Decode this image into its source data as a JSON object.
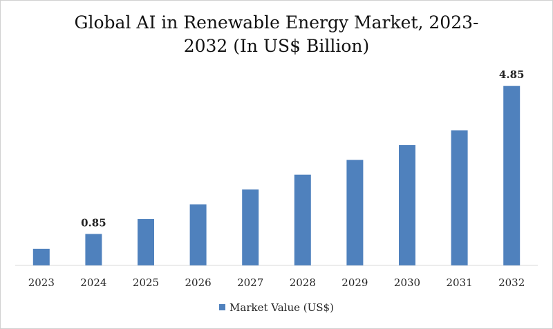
{
  "chart_data": {
    "type": "bar",
    "title_lines": [
      "Global AI in Renewable Energy Market, 2023-",
      "2032 (In US$ Billion)"
    ],
    "categories": [
      "2023",
      "2024",
      "2025",
      "2026",
      "2027",
      "2028",
      "2029",
      "2030",
      "2031",
      "2032"
    ],
    "series": [
      {
        "name": "Market Value (US$)",
        "values": [
          0.45,
          0.85,
          1.25,
          1.65,
          2.05,
          2.45,
          2.85,
          3.25,
          3.65,
          4.85
        ],
        "color": "#4f81bd"
      }
    ],
    "data_labels": [
      {
        "category": "2024",
        "text": "0.85"
      },
      {
        "category": "2032",
        "text": "4.85"
      }
    ],
    "ylim": [
      0,
      5.6
    ],
    "grid": false,
    "legend_position": "bottom"
  }
}
